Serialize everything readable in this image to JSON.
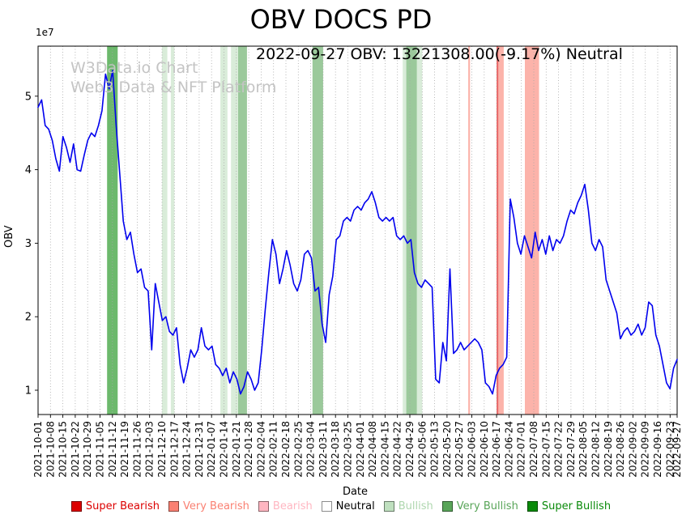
{
  "annotation": "2022-09-27 OBV: 13221308.00(-9.17%) Neutral",
  "watermark": {
    "line1": "W3Data.io Chart",
    "line2": "Web3 Data & NFT Platform"
  },
  "legend": {
    "position": "bottom",
    "items": [
      {
        "label": "Super Bearish",
        "swatch": "#dc0000",
        "text_color": "#dc0000"
      },
      {
        "label": "Very Bearish",
        "swatch": "#fa8072",
        "text_color": "#fa8072"
      },
      {
        "label": "Bearish",
        "swatch": "#ffb6c1",
        "text_color": "#ffb6c1"
      },
      {
        "label": "Neutral",
        "swatch": "#ffffff",
        "text_color": "#000000"
      },
      {
        "label": "Bullish",
        "swatch": "#bfe0bf",
        "text_color": "#afd7af"
      },
      {
        "label": "Very Bullish",
        "swatch": "#59a559",
        "text_color": "#59a559"
      },
      {
        "label": "Super Bullish",
        "swatch": "#0a8a0a",
        "text_color": "#0a8a0a"
      }
    ]
  },
  "chart_data": {
    "type": "line",
    "title": "OBV DOCS PD",
    "xlabel": "Date",
    "ylabel": "OBV",
    "y_offset_label": "1e7",
    "y_unit": 10000000,
    "grid": "vertical-dotted",
    "x_start": "2021-10-01",
    "x_end": "2022-09-27",
    "ylim_1e7": [
      0.67,
      5.68
    ],
    "y_ticks_1e7": [
      1,
      2,
      3,
      4,
      5
    ],
    "x_tick_labels": [
      "2021-10-01",
      "2021-10-08",
      "2021-10-15",
      "2021-10-22",
      "2021-10-29",
      "2021-11-05",
      "2021-11-12",
      "2021-11-19",
      "2021-11-26",
      "2021-12-03",
      "2021-12-10",
      "2021-12-17",
      "2021-12-24",
      "2021-12-31",
      "2022-01-07",
      "2022-01-14",
      "2022-01-21",
      "2022-01-28",
      "2022-02-04",
      "2022-02-11",
      "2022-02-18",
      "2022-02-25",
      "2022-03-04",
      "2022-03-11",
      "2022-03-18",
      "2022-03-25",
      "2022-04-01",
      "2022-04-08",
      "2022-04-15",
      "2022-04-22",
      "2022-04-29",
      "2022-05-06",
      "2022-05-13",
      "2022-05-20",
      "2022-05-27",
      "2022-06-03",
      "2022-06-10",
      "2022-06-17",
      "2022-06-24",
      "2022-07-01",
      "2022-07-08",
      "2022-07-15",
      "2022-07-22",
      "2022-07-29",
      "2022-08-05",
      "2022-08-12",
      "2022-08-19",
      "2022-08-26",
      "2022-09-02",
      "2022-09-09",
      "2022-09-16",
      "2022-09-23",
      "2022-09-27"
    ],
    "series": [
      {
        "name": "OBV",
        "color": "#0000ee",
        "sample_interval_days": 2,
        "values_1e7": [
          4.85,
          4.95,
          4.6,
          4.55,
          4.4,
          4.15,
          3.98,
          4.45,
          4.3,
          4.1,
          4.35,
          4.0,
          3.98,
          4.2,
          4.4,
          4.5,
          4.45,
          4.6,
          4.8,
          5.3,
          5.1,
          5.35,
          4.6,
          3.95,
          3.3,
          3.05,
          3.15,
          2.85,
          2.6,
          2.65,
          2.4,
          2.35,
          1.55,
          2.45,
          2.2,
          1.95,
          2.0,
          1.8,
          1.75,
          1.85,
          1.35,
          1.1,
          1.3,
          1.55,
          1.45,
          1.55,
          1.85,
          1.6,
          1.55,
          1.6,
          1.35,
          1.3,
          1.2,
          1.3,
          1.1,
          1.25,
          1.15,
          0.95,
          1.05,
          1.25,
          1.15,
          1.0,
          1.1,
          1.55,
          2.1,
          2.6,
          3.05,
          2.85,
          2.45,
          2.65,
          2.9,
          2.7,
          2.45,
          2.35,
          2.5,
          2.85,
          2.9,
          2.8,
          2.35,
          2.4,
          1.9,
          1.65,
          2.3,
          2.55,
          3.05,
          3.1,
          3.3,
          3.35,
          3.3,
          3.45,
          3.5,
          3.45,
          3.55,
          3.6,
          3.7,
          3.55,
          3.35,
          3.3,
          3.35,
          3.3,
          3.35,
          3.1,
          3.05,
          3.1,
          3.0,
          3.05,
          2.6,
          2.45,
          2.4,
          2.5,
          2.45,
          2.4,
          1.15,
          1.1,
          1.65,
          1.4,
          2.65,
          1.5,
          1.55,
          1.65,
          1.55,
          1.6,
          1.65,
          1.7,
          1.65,
          1.55,
          1.1,
          1.05,
          0.95,
          1.2,
          1.3,
          1.35,
          1.45,
          3.6,
          3.35,
          3.0,
          2.85,
          3.1,
          2.95,
          2.8,
          3.15,
          2.9,
          3.05,
          2.85,
          3.1,
          2.9,
          3.05,
          3.0,
          3.1,
          3.3,
          3.45,
          3.4,
          3.55,
          3.65,
          3.8,
          3.45,
          3.0,
          2.9,
          3.05,
          2.95,
          2.5,
          2.35,
          2.2,
          2.05,
          1.7,
          1.8,
          1.85,
          1.75,
          1.8,
          1.9,
          1.75,
          1.85,
          2.2,
          2.15,
          1.75,
          1.6,
          1.35,
          1.1,
          1.02,
          1.3,
          1.42
        ]
      }
    ],
    "signal_colors": {
      "super_bearish": "#dc0000",
      "very_bearish": "#fa8072",
      "bearish": "#ffb6c1",
      "neutral": "#ffffff",
      "bullish": "#bfe0bf",
      "very_bullish": "#59a559",
      "super_bullish": "#0a8a0a"
    },
    "signal_bands": [
      {
        "from": "2021-11-09",
        "to": "2021-11-15",
        "signal": "super_bullish"
      },
      {
        "from": "2021-12-10",
        "to": "2021-12-13",
        "signal": "bullish"
      },
      {
        "from": "2021-12-15",
        "to": "2021-12-17",
        "signal": "bullish"
      },
      {
        "from": "2022-01-12",
        "to": "2022-01-16",
        "signal": "bullish"
      },
      {
        "from": "2022-01-18",
        "to": "2022-01-22",
        "signal": "bullish"
      },
      {
        "from": "2022-01-22",
        "to": "2022-01-27",
        "signal": "very_bullish"
      },
      {
        "from": "2022-03-05",
        "to": "2022-03-11",
        "signal": "very_bullish"
      },
      {
        "from": "2022-04-25",
        "to": "2022-04-27",
        "signal": "bullish"
      },
      {
        "from": "2022-04-27",
        "to": "2022-05-03",
        "signal": "very_bullish"
      },
      {
        "from": "2022-05-03",
        "to": "2022-05-06",
        "signal": "bullish"
      },
      {
        "from": "2022-06-01",
        "to": "2022-06-02",
        "signal": "very_bearish"
      },
      {
        "from": "2022-06-17",
        "to": "2022-06-18",
        "signal": "super_bearish"
      },
      {
        "from": "2022-06-18",
        "to": "2022-06-21",
        "signal": "very_bearish"
      },
      {
        "from": "2022-07-03",
        "to": "2022-07-11",
        "signal": "very_bearish"
      }
    ]
  }
}
